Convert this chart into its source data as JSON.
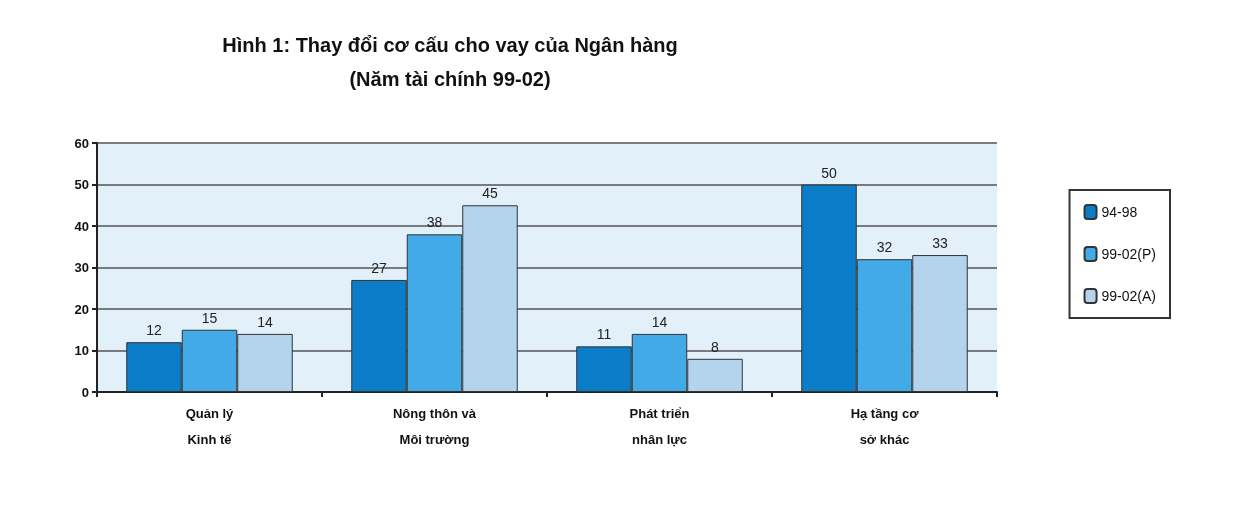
{
  "chart_data": {
    "type": "bar",
    "title": "Hình 1: Thay đổi cơ cấu cho vay của Ngân hàng",
    "subtitle": "(Năm tài chính 99-02)",
    "categories": [
      "Quản lý\nKinh tế",
      "Nông thôn và\nMôi trường",
      "Phát triển\nnhân lực",
      "Hạ tầng cơ\nsở khác"
    ],
    "series": [
      {
        "name": "94-98",
        "color": "#0a7cc8",
        "values": [
          12,
          27,
          11,
          50
        ]
      },
      {
        "name": "99-02(P)",
        "color": "#42aae6",
        "values": [
          15,
          38,
          14,
          32
        ]
      },
      {
        "name": "99-02(A)",
        "color": "#b4d4ee",
        "values": [
          14,
          45,
          8,
          33
        ]
      }
    ],
    "ylim": [
      0,
      60
    ],
    "yticks": [
      0,
      10,
      20,
      30,
      40,
      50,
      60
    ],
    "grid": "y",
    "legend": "right",
    "data_labels": true
  }
}
